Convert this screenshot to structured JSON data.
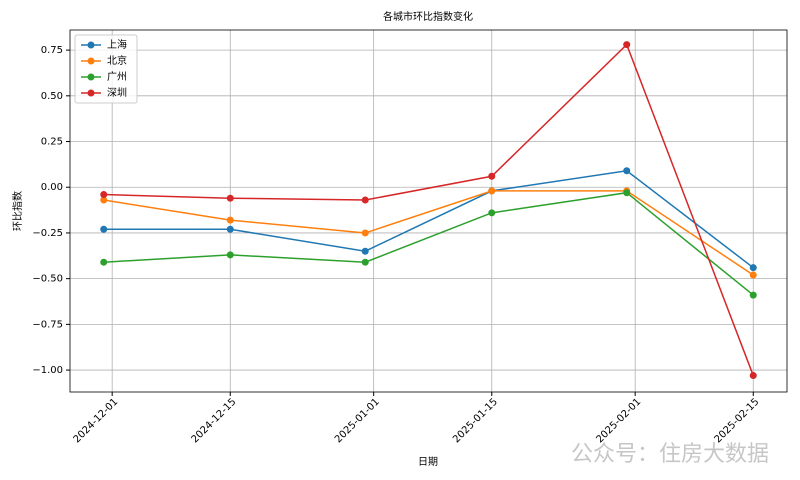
{
  "chart_data": {
    "type": "line",
    "title": "各城市环比指数变化",
    "x_label": "日期",
    "y_label": "环比指数",
    "x": [
      "2024-11-30",
      "2024-12-15",
      "2024-12-31",
      "2025-01-15",
      "2025-01-31",
      "2025-02-15"
    ],
    "series": [
      {
        "name": "上海",
        "color": "#1f77b4",
        "values": [
          -0.23,
          -0.23,
          -0.35,
          -0.02,
          0.09,
          -0.44
        ]
      },
      {
        "name": "北京",
        "color": "#ff7f0e",
        "values": [
          -0.07,
          -0.18,
          -0.25,
          -0.02,
          -0.02,
          -0.48
        ]
      },
      {
        "name": "广州",
        "color": "#2ca02c",
        "values": [
          -0.41,
          -0.37,
          -0.41,
          -0.14,
          -0.03,
          -0.59
        ]
      },
      {
        "name": "深圳",
        "color": "#d62728",
        "values": [
          -0.04,
          -0.06,
          -0.07,
          0.06,
          0.78,
          -1.03
        ]
      }
    ],
    "xlim": [
      "2024-11-26",
      "2025-02-19"
    ],
    "xticks": [
      "2024-12-01",
      "2024-12-15",
      "2025-01-01",
      "2025-01-15",
      "2025-02-01",
      "2025-02-15"
    ],
    "ylim": [
      -1.12,
      0.86
    ],
    "yticks": [
      {
        "value": -1,
        "label": "−1.00"
      },
      {
        "value": -0.75,
        "label": "−0.75"
      },
      {
        "value": -0.5,
        "label": "−0.50"
      },
      {
        "value": -0.25,
        "label": "−0.25"
      },
      {
        "value": 0,
        "label": "0.00"
      },
      {
        "value": 0.25,
        "label": "0.25"
      },
      {
        "value": 0.5,
        "label": "0.50"
      },
      {
        "value": 0.75,
        "label": "0.75"
      }
    ],
    "grid": true,
    "legend": "upper left",
    "watermark": "公众号：住房大数据"
  }
}
